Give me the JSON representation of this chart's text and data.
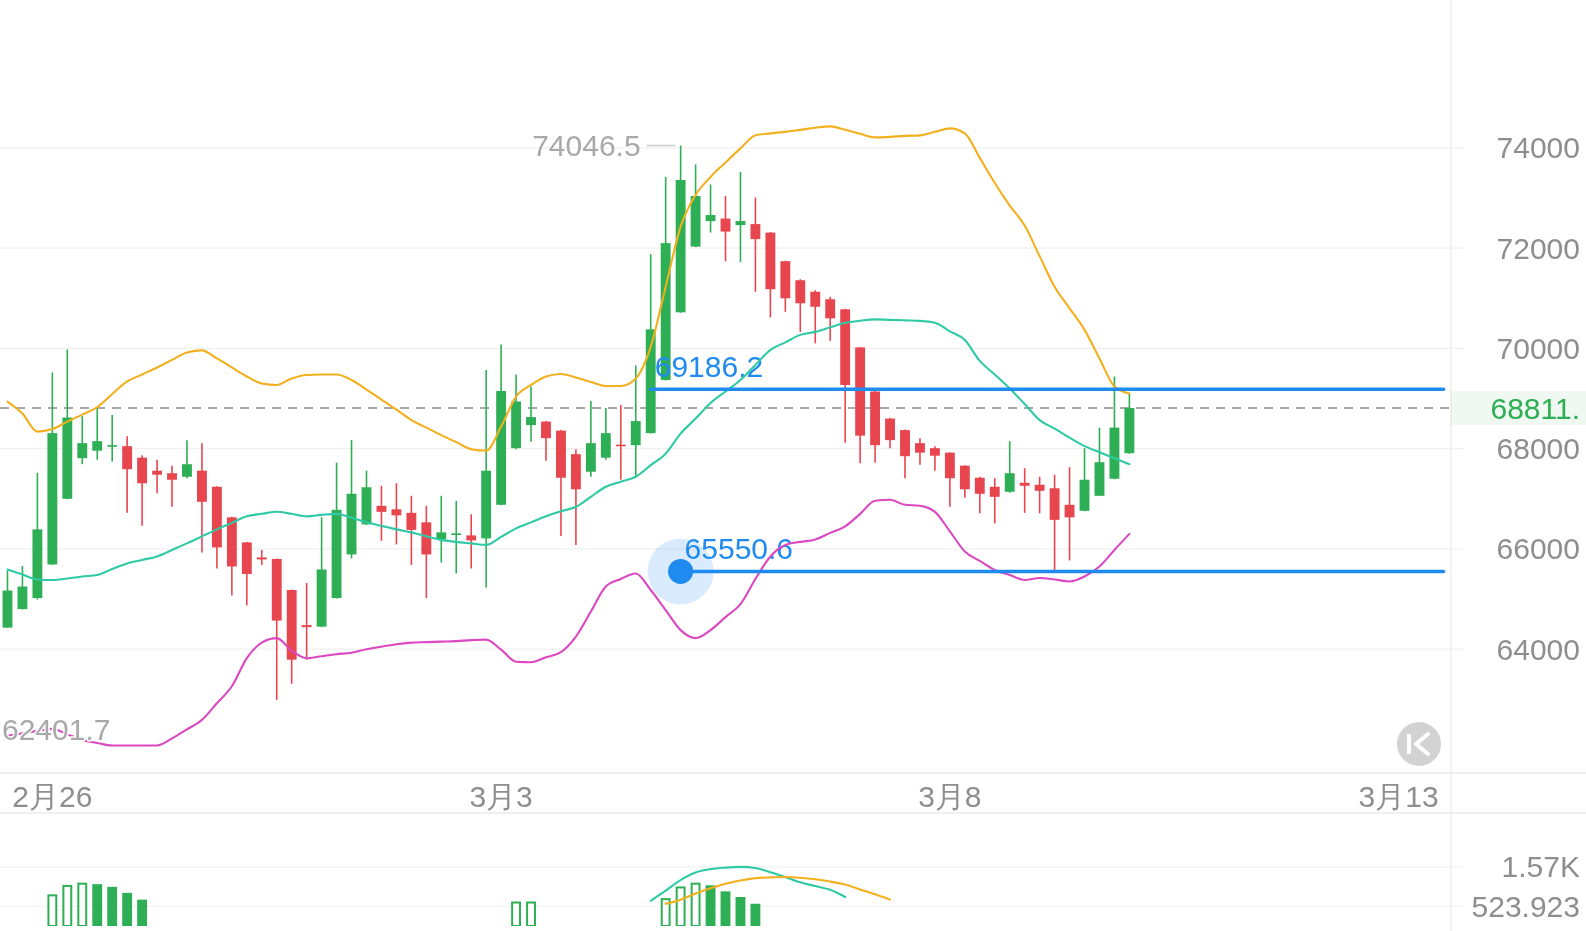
{
  "chart_data": [
    {
      "type": "candlestick",
      "categories": [
        null,
        null,
        null,
        "2月26",
        null,
        null,
        null,
        null,
        null,
        null,
        null,
        null,
        null,
        null,
        null,
        null,
        null,
        null,
        null,
        null,
        null,
        null,
        null,
        null,
        null,
        null,
        null,
        null,
        null,
        null,
        null,
        null,
        null,
        "3月3",
        null,
        null,
        null,
        null,
        null,
        null,
        null,
        null,
        null,
        null,
        null,
        null,
        null,
        null,
        null,
        null,
        null,
        null,
        null,
        null,
        null,
        null,
        null,
        null,
        null,
        null,
        null,
        null,
        null,
        "3月8",
        null,
        null,
        null,
        null,
        null,
        null,
        null,
        null,
        null,
        null,
        null,
        null,
        null,
        null,
        null,
        null,
        null,
        null,
        null,
        null,
        null,
        null,
        null,
        null,
        null,
        null,
        null,
        null,
        null,
        "3月13",
        null,
        null,
        null
      ],
      "ohlc": [
        [
          64430,
          65570,
          64430,
          65170
        ],
        [
          64800,
          65660,
          64790,
          65250
        ],
        [
          65020,
          67520,
          64990,
          66390
        ],
        [
          65690,
          69520,
          65680,
          68310
        ],
        [
          67000,
          69980,
          66990,
          68620
        ],
        [
          67810,
          68650,
          67690,
          68110
        ],
        [
          67960,
          68810,
          67780,
          68150
        ],
        [
          68040,
          68670,
          67740,
          68070
        ],
        [
          68050,
          68250,
          66720,
          67590
        ],
        [
          67820,
          67870,
          66460,
          67310
        ],
        [
          67560,
          67780,
          67110,
          67480
        ],
        [
          67510,
          67660,
          66840,
          67380
        ],
        [
          67440,
          68170,
          67410,
          67690
        ],
        [
          67560,
          68110,
          65930,
          66940
        ],
        [
          67240,
          67250,
          65610,
          66030
        ],
        [
          66630,
          66640,
          65070,
          65650
        ],
        [
          66130,
          66140,
          64870,
          65500
        ],
        [
          65830,
          65980,
          65680,
          65790
        ],
        [
          65800,
          65810,
          62990,
          64570
        ],
        [
          65180,
          65190,
          63310,
          63790
        ],
        [
          64480,
          65320,
          63790,
          64440
        ],
        [
          64450,
          66630,
          64440,
          65590
        ],
        [
          65020,
          67720,
          65010,
          66780
        ],
        [
          65890,
          68170,
          65810,
          67100
        ],
        [
          66490,
          67560,
          66480,
          67230
        ],
        [
          66860,
          67260,
          66160,
          66740
        ],
        [
          66790,
          67310,
          66090,
          66670
        ],
        [
          66720,
          67060,
          65680,
          66380
        ],
        [
          66530,
          66860,
          65020,
          65890
        ],
        [
          66190,
          67060,
          65730,
          66330
        ],
        [
          66290,
          66960,
          65510,
          66310
        ],
        [
          66270,
          66690,
          65610,
          66170
        ],
        [
          66210,
          69570,
          65230,
          67560
        ],
        [
          66880,
          70080,
          66870,
          69150
        ],
        [
          68010,
          69480,
          67990,
          68940
        ],
        [
          68470,
          69240,
          68140,
          68630
        ],
        [
          68540,
          68550,
          67760,
          68210
        ],
        [
          68360,
          68370,
          66260,
          67420
        ],
        [
          67890,
          67990,
          66080,
          67190
        ],
        [
          67540,
          68950,
          67440,
          68110
        ],
        [
          67820,
          68810,
          67780,
          68310
        ],
        [
          68080,
          68870,
          67380,
          68060
        ],
        [
          68070,
          69660,
          67440,
          68550
        ],
        [
          68310,
          71880,
          68300,
          70380
        ],
        [
          69370,
          73420,
          69360,
          72100
        ],
        [
          70720,
          74046.5,
          70710,
          73360
        ],
        [
          72030,
          73670,
          72020,
          73040
        ],
        [
          72540,
          73270,
          72310,
          72660
        ],
        [
          72590,
          73040,
          71740,
          72330
        ],
        [
          72460,
          73520,
          71720,
          72540
        ],
        [
          72480,
          73010,
          71130,
          72180
        ],
        [
          72310,
          72320,
          70620,
          71180
        ],
        [
          71740,
          71750,
          70730,
          71000
        ],
        [
          71360,
          71380,
          70330,
          70900
        ],
        [
          71130,
          71160,
          70100,
          70830
        ],
        [
          70980,
          71030,
          70150,
          70600
        ],
        [
          70780,
          70790,
          68120,
          69270
        ],
        [
          70020,
          70030,
          67710,
          68260
        ],
        [
          69140,
          69150,
          67720,
          68070
        ],
        [
          68600,
          68610,
          68010,
          68170
        ],
        [
          68370,
          68380,
          67410,
          67850
        ],
        [
          68110,
          68210,
          67680,
          67920
        ],
        [
          68010,
          68050,
          67560,
          67860
        ],
        [
          67920,
          67930,
          66840,
          67410
        ],
        [
          67660,
          67670,
          67020,
          67190
        ],
        [
          67420,
          67440,
          66710,
          67100
        ],
        [
          67240,
          67410,
          66510,
          67040
        ],
        [
          67140,
          68150,
          67120,
          67510
        ],
        [
          67320,
          67610,
          66720,
          67260
        ],
        [
          67280,
          67440,
          66710,
          67160
        ],
        [
          67210,
          67480,
          65550,
          66580
        ],
        [
          66880,
          67630,
          65770,
          66630
        ],
        [
          66760,
          68010,
          66750,
          67380
        ],
        [
          67060,
          68420,
          67060,
          67730
        ],
        [
          67400,
          69440,
          67390,
          68420
        ],
        [
          67910,
          69100,
          67900,
          68811
        ],
        null,
        null,
        null,
        null,
        null,
        null,
        null,
        null,
        null,
        null,
        null,
        null,
        null,
        null,
        null,
        null,
        null,
        null,
        null,
        null,
        null
      ],
      "colors": [
        "#2eaf55",
        "#2eaf55",
        "#2eaf55",
        "#2eaf55",
        "#2eaf55",
        "#2eaf55",
        "#2eaf55",
        "#2eaf55",
        "#e8464f",
        "#e8464f",
        "#e8464f",
        "#e8464f",
        "#2eaf55",
        "#e8464f",
        "#e8464f",
        "#e8464f",
        "#e8464f",
        "#e8464f",
        "#e8464f",
        "#e8464f",
        "#e8464f",
        "#2eaf55",
        "#2eaf55",
        "#2eaf55",
        "#2eaf55",
        "#e8464f",
        "#e8464f",
        "#e8464f",
        "#e8464f",
        "#2eaf55",
        "#2eaf55",
        "#e8464f",
        "#2eaf55",
        "#2eaf55",
        "#2eaf55",
        "#2eaf55",
        "#e8464f",
        "#e8464f",
        "#e8464f",
        "#2eaf55",
        "#2eaf55",
        "#e8464f",
        "#2eaf55",
        "#2eaf55",
        "#2eaf55",
        "#2eaf55",
        "#2eaf55",
        "#2eaf55",
        "#e8464f",
        "#2eaf55",
        "#e8464f",
        "#e8464f",
        "#e8464f",
        "#e8464f",
        "#e8464f",
        "#e8464f",
        "#e8464f",
        "#e8464f",
        "#e8464f",
        "#e8464f",
        "#e8464f",
        "#e8464f",
        "#e8464f",
        "#e8464f",
        "#e8464f",
        "#e8464f",
        "#e8464f",
        "#2eaf55",
        "#e8464f",
        "#e8464f",
        "#e8464f",
        "#e8464f",
        "#2eaf55",
        "#2eaf55",
        "#2eaf55",
        "#2eaf55",
        null,
        null,
        null,
        null,
        null,
        null,
        null,
        null,
        null,
        null,
        null,
        null,
        null,
        null,
        null,
        null,
        null,
        null,
        null,
        null,
        null
      ],
      "ylim": [
        61530,
        76950
      ],
      "yticks": [
        64000,
        66000,
        68000,
        70000,
        72000,
        74000
      ],
      "grid": "y",
      "series": [
        {
          "type": "line",
          "color": "#f2b01e",
          "values": [
            68940,
            68700,
            68340,
            68390,
            68540,
            68680,
            68830,
            69090,
            69340,
            69480,
            69620,
            69770,
            69920,
            69960,
            69800,
            69620,
            69440,
            69300,
            69270,
            69400,
            69470,
            69480,
            69480,
            69370,
            69180,
            68980,
            68780,
            68570,
            68420,
            68270,
            68130,
            67990,
            67960,
            68440,
            69040,
            69270,
            69440,
            69490,
            69420,
            69330,
            69250,
            69250,
            69400,
            70030,
            71230,
            72430,
            73060,
            73420,
            73710,
            73990,
            74250,
            74290,
            74320,
            74360,
            74400,
            74430,
            74360,
            74280,
            74210,
            74220,
            74240,
            74250,
            74320,
            74390,
            74290,
            73800,
            73300,
            72850,
            72450,
            71840,
            71230,
            70800,
            70370,
            69800,
            69240,
            69100,
            null,
            null,
            null,
            null,
            null,
            null,
            null,
            null,
            null,
            null,
            null,
            null,
            null,
            null,
            null,
            null,
            null,
            null,
            null,
            null,
            null
          ]
        },
        {
          "type": "line",
          "color": "#2fcaa5",
          "values": [
            65590,
            65490,
            65390,
            65380,
            65410,
            65450,
            65480,
            65600,
            65710,
            65780,
            65850,
            65980,
            66110,
            66250,
            66390,
            66520,
            66650,
            66700,
            66740,
            66700,
            66650,
            66680,
            66700,
            66620,
            66530,
            66460,
            66390,
            66330,
            66250,
            66180,
            66140,
            66110,
            66080,
            66240,
            66410,
            66530,
            66650,
            66750,
            66840,
            67040,
            67240,
            67340,
            67440,
            67670,
            67900,
            68300,
            68600,
            68910,
            69140,
            69370,
            69670,
            69970,
            70120,
            70270,
            70330,
            70420,
            70510,
            70550,
            70580,
            70570,
            70560,
            70550,
            70510,
            70340,
            70170,
            69750,
            69480,
            69200,
            68890,
            68570,
            68400,
            68220,
            68050,
            67930,
            67810,
            67690,
            null,
            null,
            null,
            null,
            null,
            null,
            null,
            null,
            null,
            null,
            null,
            null,
            null,
            null,
            null,
            null,
            null,
            null,
            null,
            null,
            null
          ]
        },
        {
          "type": "line",
          "color": "#dc48c0",
          "values": [
            62270,
            62320,
            62370,
            62410,
            62300,
            62190,
            62130,
            62080,
            62080,
            62080,
            62080,
            62220,
            62400,
            62590,
            62920,
            63260,
            63820,
            64130,
            64220,
            63970,
            63820,
            63860,
            63900,
            63930,
            64000,
            64050,
            64100,
            64130,
            64140,
            64150,
            64160,
            64180,
            64190,
            63990,
            63750,
            63740,
            63840,
            63940,
            64250,
            64750,
            65250,
            65400,
            65510,
            65180,
            64780,
            64380,
            64220,
            64380,
            64640,
            64900,
            65400,
            65850,
            66080,
            66140,
            66190,
            66320,
            66450,
            66700,
            66960,
            66980,
            66880,
            66860,
            66740,
            66350,
            65950,
            65760,
            65580,
            65480,
            65380,
            65420,
            65390,
            65350,
            65450,
            65650,
            65980,
            66300,
            null,
            null,
            null,
            null,
            null,
            null,
            null,
            null,
            null,
            null,
            null,
            null,
            null,
            null,
            null,
            null,
            null,
            null,
            null,
            null,
            null
          ]
        },
        {
          "type": "line",
          "color": "#1f8bf0",
          "values": [
            null,
            null,
            null,
            null,
            null,
            null,
            null,
            null,
            null,
            null,
            null,
            null,
            null,
            null,
            null,
            null,
            null,
            null,
            null,
            null,
            null,
            null,
            null,
            null,
            null,
            null,
            null,
            null,
            null,
            null,
            null,
            null,
            null,
            null,
            null,
            null,
            null,
            null,
            null,
            null,
            null,
            null,
            null,
            69186.2,
            69186.2,
            69186.2,
            69186.2,
            69186.2,
            69186.2,
            69186.2,
            69186.2,
            69186.2,
            69186.2,
            69186.2,
            69186.2,
            69186.2,
            69186.2,
            69186.2,
            69186.2,
            69186.2,
            69186.2,
            69186.2,
            69186.2,
            69186.2,
            69186.2,
            69186.2,
            69186.2,
            69186.2,
            69186.2,
            69186.2,
            69186.2,
            69186.2,
            69186.2,
            69186.2,
            69186.2,
            69186.2,
            69186.2,
            69186.2,
            69186.2,
            69186.2,
            69186.2,
            69186.2,
            69186.2,
            69186.2,
            69186.2,
            69186.2,
            69186.2,
            69186.2,
            69186.2,
            69186.2,
            69186.2,
            69186.2,
            69186.2,
            69186.2,
            69186.2,
            69186.2,
            69186.2
          ],
          "value_labels": [
            null,
            null,
            null,
            null,
            null,
            null,
            null,
            null,
            null,
            null,
            null,
            null,
            null,
            null,
            null,
            null,
            null,
            null,
            null,
            null,
            null,
            null,
            null,
            null,
            null,
            null,
            null,
            null,
            null,
            null,
            null,
            null,
            null,
            null,
            null,
            null,
            null,
            null,
            null,
            null,
            null,
            null,
            null,
            "69186.2",
            null,
            null,
            null,
            null,
            null,
            null,
            null,
            null,
            null,
            null,
            null,
            null,
            null,
            null,
            null,
            null,
            null,
            null,
            null,
            null,
            null,
            null,
            null,
            null,
            null,
            null,
            null,
            null,
            null,
            null,
            null,
            null,
            null,
            null,
            null,
            null,
            null,
            null,
            null,
            null,
            null,
            null,
            null,
            null,
            null,
            null,
            null,
            null,
            null,
            null,
            null,
            null,
            null
          ]
        },
        {
          "type": "line",
          "color": "#1f8bf0",
          "values": [
            null,
            null,
            null,
            null,
            null,
            null,
            null,
            null,
            null,
            null,
            null,
            null,
            null,
            null,
            null,
            null,
            null,
            null,
            null,
            null,
            null,
            null,
            null,
            null,
            null,
            null,
            null,
            null,
            null,
            null,
            null,
            null,
            null,
            null,
            null,
            null,
            null,
            null,
            null,
            null,
            null,
            null,
            null,
            null,
            null,
            65550.6,
            65550.6,
            65550.6,
            65550.6,
            65550.6,
            65550.6,
            65550.6,
            65550.6,
            65550.6,
            65550.6,
            65550.6,
            65550.6,
            65550.6,
            65550.6,
            65550.6,
            65550.6,
            65550.6,
            65550.6,
            65550.6,
            65550.6,
            65550.6,
            65550.6,
            65550.6,
            65550.6,
            65550.6,
            65550.6,
            65550.6,
            65550.6,
            65550.6,
            65550.6,
            65550.6,
            65550.6,
            65550.6,
            65550.6,
            65550.6,
            65550.6,
            65550.6,
            65550.6,
            65550.6,
            65550.6,
            65550.6,
            65550.6,
            65550.6,
            65550.6,
            65550.6,
            65550.6,
            65550.6,
            65550.6,
            65550.6,
            65550.6,
            65550.6,
            65550.6
          ],
          "value_labels": [
            null,
            null,
            null,
            null,
            null,
            null,
            null,
            null,
            null,
            null,
            null,
            null,
            null,
            null,
            null,
            null,
            null,
            null,
            null,
            null,
            null,
            null,
            null,
            null,
            null,
            null,
            null,
            null,
            null,
            null,
            null,
            null,
            null,
            null,
            null,
            null,
            null,
            null,
            null,
            null,
            null,
            null,
            null,
            null,
            null,
            "65550.6",
            null,
            null,
            null,
            null,
            null,
            null,
            null,
            null,
            null,
            null,
            null,
            null,
            null,
            null,
            null,
            null,
            null,
            null,
            null,
            null,
            null,
            null,
            null,
            null,
            null,
            null,
            null,
            null,
            null,
            null,
            null,
            null,
            null,
            null,
            null,
            null,
            null,
            null,
            null,
            null,
            null,
            null,
            null,
            null,
            null,
            null,
            null,
            null,
            null,
            null,
            null
          ]
        },
        {
          "type": "scatter",
          "color": "#1f8bf0",
          "marker": "circle",
          "values": [
            null,
            null,
            null,
            null,
            null,
            null,
            null,
            null,
            null,
            null,
            null,
            null,
            null,
            null,
            null,
            null,
            null,
            null,
            null,
            null,
            null,
            null,
            null,
            null,
            null,
            null,
            null,
            null,
            null,
            null,
            null,
            null,
            null,
            null,
            null,
            null,
            null,
            null,
            null,
            null,
            null,
            null,
            null,
            null,
            null,
            65550.6,
            null,
            null,
            null,
            null,
            null,
            null,
            null,
            null,
            null,
            null,
            null,
            null,
            null,
            null,
            null,
            null,
            null,
            null,
            null,
            null,
            null,
            null,
            null,
            null,
            null,
            null,
            null,
            null,
            null,
            null,
            null,
            null,
            null,
            null,
            null,
            null,
            null,
            null,
            null,
            null,
            null,
            null,
            null,
            null,
            null,
            null,
            null,
            null,
            null,
            null,
            null
          ]
        }
      ],
      "ref_lines": [
        {
          "axis": "y",
          "value": 68811,
          "label": "68811.",
          "color": "#a8a8a8",
          "line_style": "dashed"
        }
      ],
      "annotations": [
        "74046.5",
        {
          "text": "62401.7",
          "y": 62401.7
        }
      ]
    },
    {
      "type": "bar",
      "categories": [
        null,
        null,
        null,
        null,
        null,
        null,
        null,
        null,
        null,
        null,
        null,
        null,
        null,
        null,
        null,
        null,
        null,
        null,
        null,
        null,
        null,
        null,
        null,
        null,
        null,
        null,
        null,
        null,
        null,
        null,
        null,
        null,
        null,
        null,
        null,
        null,
        null,
        null,
        null,
        null,
        null,
        null,
        null,
        null,
        null,
        null,
        null,
        null,
        null,
        null,
        null,
        null,
        null,
        null,
        null,
        null,
        null,
        null,
        null,
        null,
        null,
        null,
        null,
        null,
        null,
        null,
        null,
        null,
        null,
        null,
        null,
        null,
        null,
        null,
        null,
        null,
        null,
        null,
        null,
        null,
        null,
        null,
        null,
        null,
        null,
        null,
        null,
        null,
        null,
        null,
        null,
        null,
        null,
        null,
        null,
        null,
        null
      ],
      "values": [
        null,
        null,
        null,
        null,
        null,
        null,
        1110,
        1040,
        880,
        700,
        null,
        null,
        null,
        null,
        null,
        null,
        null,
        null,
        null,
        null,
        null,
        null,
        null,
        null,
        null,
        null,
        null,
        null,
        null,
        null,
        null,
        null,
        null,
        null,
        null,
        null,
        null,
        null,
        null,
        null,
        null,
        null,
        null,
        null,
        null,
        null,
        null,
        1080,
        920,
        770,
        590,
        null,
        null,
        null,
        null,
        null,
        null,
        null,
        null,
        null,
        null,
        null,
        null,
        null,
        null,
        null,
        null,
        null,
        null,
        null,
        null,
        null,
        null,
        null,
        null,
        null,
        null,
        null,
        null,
        null,
        null,
        null,
        null,
        null,
        null,
        null,
        null,
        null,
        null,
        null,
        null,
        null,
        null,
        null,
        null,
        null,
        null
      ],
      "color": "#2eaf55",
      "ylim": [
        0,
        3000
      ],
      "yticks": [
        {
          "value": 1570,
          "label": "1.57K"
        },
        523.923
      ],
      "tick_labels": "y",
      "grid": "y",
      "series": [
        {
          "type": "bar",
          "color": "#2eaf55",
          "values": [
            null,
            null,
            null,
            840,
            1090,
            1150,
            null,
            null,
            null,
            null,
            null,
            null,
            null,
            null,
            null,
            null,
            null,
            null,
            null,
            null,
            null,
            null,
            null,
            null,
            null,
            null,
            null,
            null,
            null,
            null,
            null,
            null,
            null,
            null,
            650,
            650,
            null,
            null,
            null,
            null,
            null,
            null,
            null,
            null,
            740,
            1050,
            1150,
            null,
            null,
            null,
            null,
            null,
            null,
            null,
            null,
            null,
            null,
            null,
            null,
            null,
            null,
            null,
            null,
            null,
            null,
            null,
            null,
            null,
            null,
            null,
            null,
            null,
            null,
            null,
            null,
            null,
            null,
            null,
            null,
            null,
            null,
            null,
            null,
            null,
            null,
            null,
            null,
            null,
            null,
            null,
            null,
            null,
            null,
            null,
            null,
            null,
            null
          ]
        },
        {
          "type": "line",
          "color": "#2fcaa5",
          "values": [
            null,
            null,
            null,
            null,
            null,
            null,
            null,
            null,
            null,
            null,
            null,
            null,
            null,
            null,
            null,
            null,
            null,
            null,
            null,
            null,
            null,
            null,
            null,
            null,
            null,
            null,
            null,
            null,
            null,
            null,
            null,
            null,
            null,
            null,
            null,
            null,
            null,
            null,
            null,
            null,
            null,
            null,
            null,
            670,
            940,
            1220,
            1420,
            1510,
            1550,
            1570,
            1540,
            1430,
            1300,
            1160,
            1060,
            960,
            770,
            null,
            null,
            null,
            null,
            null,
            null,
            null,
            null,
            null,
            null,
            null,
            null,
            null,
            null,
            null,
            null,
            null,
            null,
            null,
            null,
            null,
            null,
            null,
            null,
            null,
            null,
            null,
            null,
            null,
            null,
            null,
            null,
            null,
            null,
            null,
            null,
            null,
            null,
            null,
            null
          ]
        },
        {
          "type": "line",
          "color": "#f2b01e",
          "values": [
            null,
            null,
            null,
            null,
            null,
            null,
            null,
            null,
            null,
            null,
            null,
            null,
            null,
            null,
            null,
            null,
            null,
            null,
            null,
            null,
            null,
            null,
            null,
            null,
            null,
            null,
            null,
            null,
            null,
            null,
            null,
            null,
            null,
            null,
            null,
            null,
            null,
            null,
            null,
            null,
            null,
            null,
            null,
            null,
            590,
            700,
            860,
            1000,
            1120,
            1210,
            1270,
            1290,
            1300,
            1280,
            1240,
            1180,
            1100,
            970,
            840,
            700,
            null,
            null,
            null,
            null,
            null,
            null,
            null,
            null,
            null,
            null,
            null,
            null,
            null,
            null,
            null,
            null,
            null,
            null,
            null,
            null,
            null,
            null,
            null,
            null,
            null,
            null,
            null,
            null,
            null,
            null,
            null,
            null,
            null,
            null,
            null,
            null,
            null
          ]
        }
      ]
    }
  ]
}
